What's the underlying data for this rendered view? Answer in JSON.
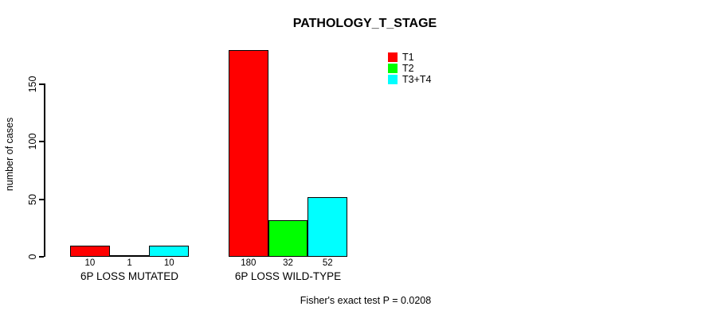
{
  "chart_data": {
    "type": "bar",
    "title": "PATHOLOGY_T_STAGE",
    "categories": [
      "6P LOSS MUTATED",
      "6P LOSS WILD-TYPE"
    ],
    "series": [
      {
        "name": "T1",
        "color": "#FF0000",
        "values": [
          10,
          180
        ]
      },
      {
        "name": "T2",
        "color": "#00FF00",
        "values": [
          1,
          32
        ]
      },
      {
        "name": "T3+T4",
        "color": "#00FFFF",
        "values": [
          10,
          52
        ]
      }
    ],
    "bar_value_labels": [
      [
        "10",
        "1",
        "10"
      ],
      [
        "180",
        "32",
        "52"
      ]
    ],
    "xlabel": "",
    "ylabel": "number of cases",
    "yticks": [
      0,
      50,
      100,
      150
    ],
    "ylim": [
      0,
      180
    ],
    "grid": false,
    "legend_position": "top-right",
    "annotation": "Fisher's exact test P = 0.0208"
  }
}
